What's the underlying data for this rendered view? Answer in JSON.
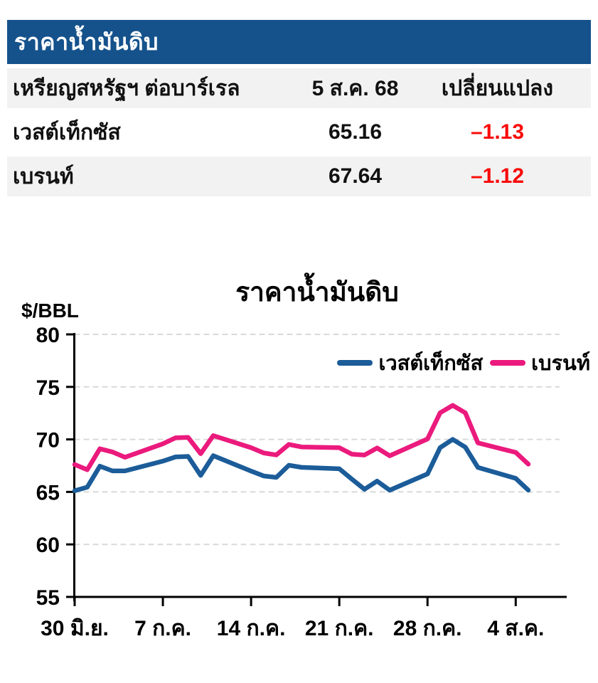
{
  "table": {
    "title": "ราคาน้ำมันดิบ",
    "title_bar_color": "#15528c",
    "row_alt_color": "#f2f2f2",
    "negative_color": "#f90a0a",
    "columns": [
      "เหรียญสหรัฐฯ ต่อบาร์เรล",
      "5 ส.ค. 68",
      "เปลี่ยนแปลง"
    ],
    "rows": [
      {
        "name": "เวสต์เท็กซัส",
        "price": "65.16",
        "change": "–1.13"
      },
      {
        "name": "เบรนท์",
        "price": "67.64",
        "change": "–1.12"
      }
    ]
  },
  "chart_data": {
    "type": "line",
    "title": "ราคาน้ำมันดิบ",
    "ylabel": "$/BBL",
    "ylim": [
      55,
      80
    ],
    "yticks": [
      55,
      60,
      65,
      70,
      75,
      80
    ],
    "grid": "horizontal dashed",
    "legend_position": "top-right inside",
    "x_axis": {
      "unit": "calendar days after 30 มิ.ย.",
      "range": [
        0,
        36
      ],
      "ticks": [
        {
          "offset": 0,
          "label": "30 มิ.ย."
        },
        {
          "offset": 7,
          "label": "7 ก.ค."
        },
        {
          "offset": 14,
          "label": "14 ก.ค."
        },
        {
          "offset": 21,
          "label": "21 ก.ค."
        },
        {
          "offset": 28,
          "label": "28 ก.ค."
        },
        {
          "offset": 35,
          "label": "4 ส.ค."
        }
      ]
    },
    "series": [
      {
        "name": "เวสต์เท็กซัส",
        "color": "#1b5c99",
        "x": [
          0,
          1,
          2,
          3,
          4,
          7,
          8,
          9,
          10,
          11,
          14,
          15,
          16,
          17,
          18,
          21,
          22,
          23,
          24,
          25,
          28,
          29,
          30,
          31,
          32,
          35,
          36
        ],
        "values": [
          65.11,
          65.45,
          67.45,
          67.0,
          67.0,
          67.93,
          68.33,
          68.38,
          66.57,
          68.45,
          66.98,
          66.52,
          66.38,
          67.54,
          67.34,
          67.2,
          66.21,
          65.25,
          66.03,
          65.16,
          66.71,
          69.21,
          70.0,
          69.26,
          67.33,
          66.29,
          65.16
        ]
      },
      {
        "name": "เบรนท์",
        "color": "#eb1a7d",
        "x": [
          0,
          1,
          2,
          3,
          4,
          7,
          8,
          9,
          10,
          11,
          14,
          15,
          16,
          17,
          18,
          21,
          22,
          23,
          24,
          25,
          28,
          29,
          30,
          31,
          32,
          35,
          36
        ],
        "values": [
          67.61,
          67.11,
          69.11,
          68.8,
          68.3,
          69.58,
          70.15,
          70.19,
          68.64,
          70.36,
          69.21,
          68.71,
          68.52,
          69.52,
          69.28,
          69.21,
          68.59,
          68.51,
          69.18,
          68.44,
          70.04,
          72.53,
          73.24,
          72.53,
          69.67,
          68.76,
          67.64
        ]
      }
    ]
  }
}
